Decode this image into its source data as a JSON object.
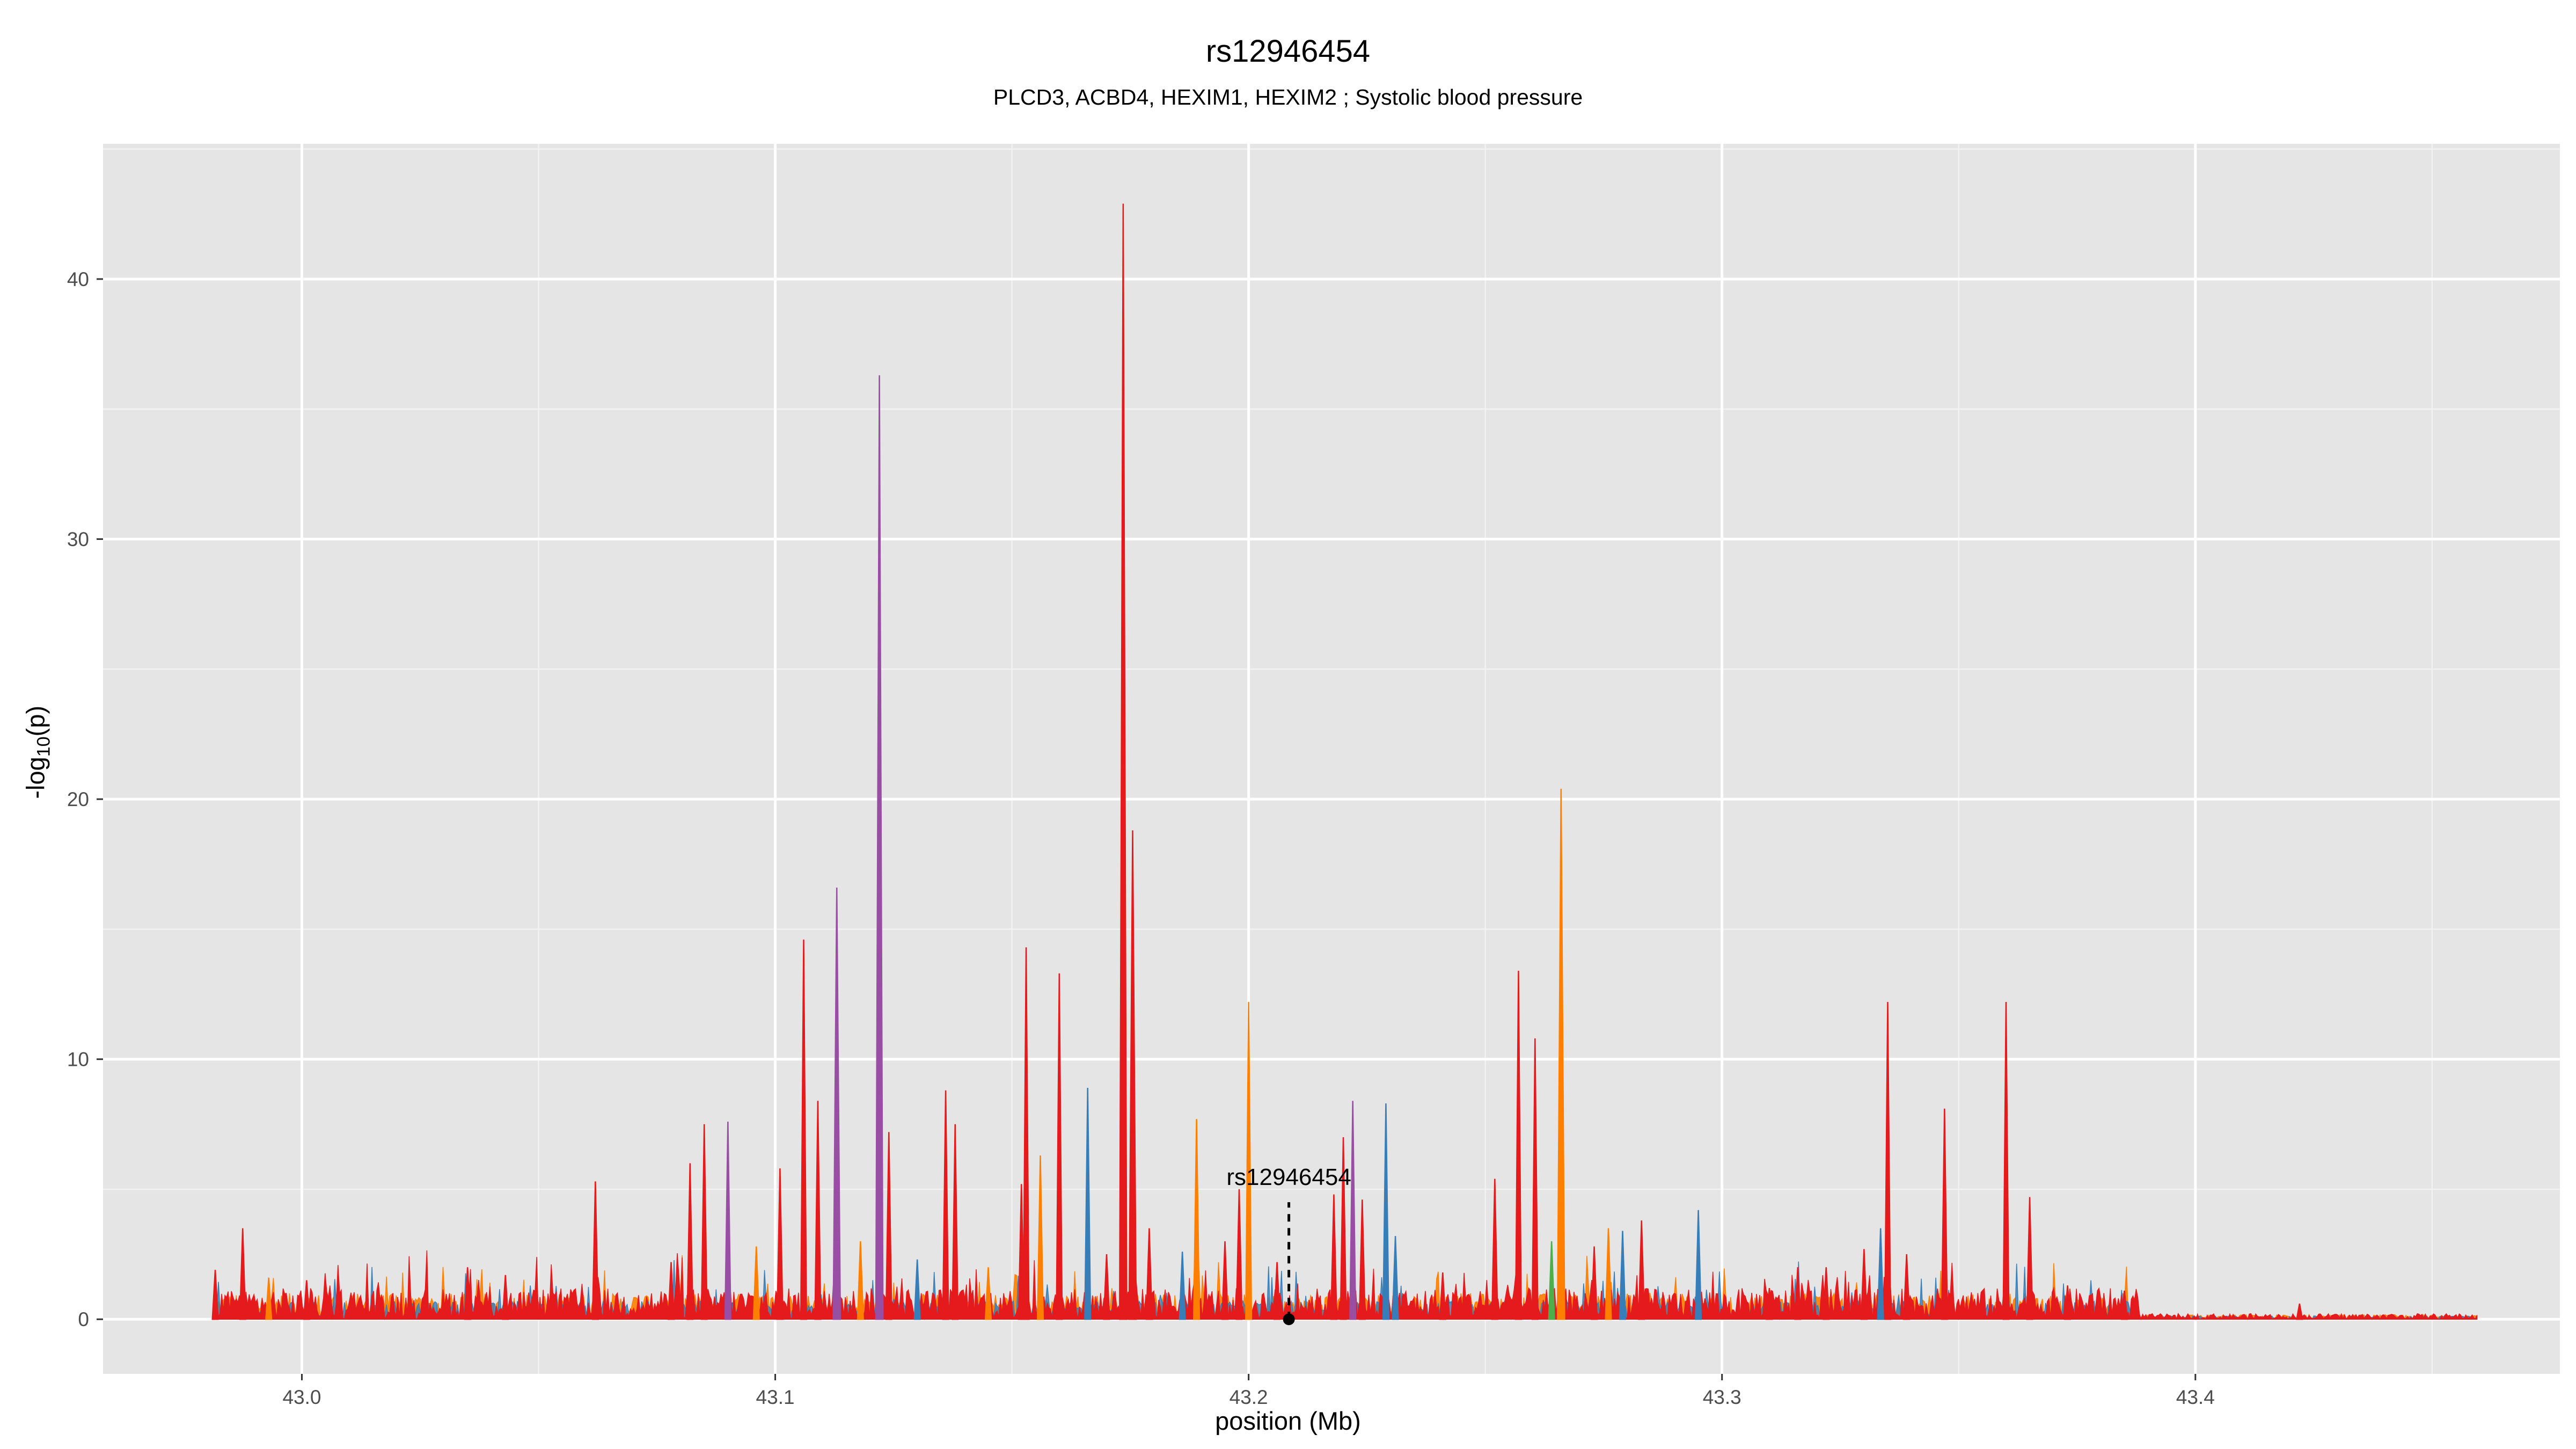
{
  "chart_data": {
    "type": "area",
    "title": "rs12946454",
    "subtitle": "PLCD3, ACBD4, HEXIM1, HEXIM2 ; Systolic blood pressure",
    "xlabel": "position (Mb)",
    "ylabel_main": "-log",
    "ylabel_sub": "10",
    "ylabel_tail": "(p)",
    "xlim": [
      42.958,
      43.477
    ],
    "ylim": [
      -2.1,
      45.2
    ],
    "x_ticks": [
      43.0,
      43.1,
      43.2,
      43.3,
      43.4
    ],
    "x_tick_labels": [
      "43.0",
      "43.1",
      "43.2",
      "43.3",
      "43.4"
    ],
    "y_ticks": [
      0,
      10,
      20,
      30,
      40
    ],
    "y_tick_labels": [
      "0",
      "10",
      "20",
      "30",
      "40"
    ],
    "grid": true,
    "background": "#e5e5e5",
    "series_colors": [
      "#e41a1c",
      "#ff7f00",
      "#377eb8",
      "#984ea3",
      "#4daf4a"
    ],
    "data_range": [
      42.9817,
      43.4595
    ],
    "peaks": [
      {
        "x": 42.9817,
        "y": 1.9,
        "color": "#e41a1c"
      },
      {
        "x": 42.9875,
        "y": 3.5,
        "color": "#e41a1c"
      },
      {
        "x": 42.993,
        "y": 1.6,
        "color": "#ff7f00"
      },
      {
        "x": 43.001,
        "y": 1.5,
        "color": "#e41a1c"
      },
      {
        "x": 43.035,
        "y": 2.0,
        "color": "#e41a1c"
      },
      {
        "x": 43.043,
        "y": 1.7,
        "color": "#e41a1c"
      },
      {
        "x": 43.062,
        "y": 5.3,
        "color": "#e41a1c"
      },
      {
        "x": 43.078,
        "y": 2.2,
        "color": "#e41a1c"
      },
      {
        "x": 43.082,
        "y": 6.0,
        "color": "#e41a1c"
      },
      {
        "x": 43.085,
        "y": 7.5,
        "color": "#e41a1c"
      },
      {
        "x": 43.09,
        "y": 7.6,
        "color": "#984ea3"
      },
      {
        "x": 43.096,
        "y": 2.8,
        "color": "#ff7f00"
      },
      {
        "x": 43.101,
        "y": 5.8,
        "color": "#e41a1c"
      },
      {
        "x": 43.106,
        "y": 14.6,
        "color": "#e41a1c"
      },
      {
        "x": 43.109,
        "y": 8.4,
        "color": "#e41a1c"
      },
      {
        "x": 43.113,
        "y": 16.6,
        "color": "#984ea3"
      },
      {
        "x": 43.118,
        "y": 3.0,
        "color": "#ff7f00"
      },
      {
        "x": 43.122,
        "y": 36.3,
        "color": "#984ea3"
      },
      {
        "x": 43.124,
        "y": 7.2,
        "color": "#e41a1c"
      },
      {
        "x": 43.13,
        "y": 2.3,
        "color": "#377eb8"
      },
      {
        "x": 43.136,
        "y": 8.8,
        "color": "#e41a1c"
      },
      {
        "x": 43.138,
        "y": 7.5,
        "color": "#e41a1c"
      },
      {
        "x": 43.145,
        "y": 2.0,
        "color": "#ff7f00"
      },
      {
        "x": 43.152,
        "y": 5.2,
        "color": "#e41a1c"
      },
      {
        "x": 43.153,
        "y": 14.3,
        "color": "#e41a1c"
      },
      {
        "x": 43.156,
        "y": 6.3,
        "color": "#ff7f00"
      },
      {
        "x": 43.16,
        "y": 13.3,
        "color": "#e41a1c"
      },
      {
        "x": 43.166,
        "y": 8.9,
        "color": "#377eb8"
      },
      {
        "x": 43.17,
        "y": 2.5,
        "color": "#e41a1c"
      },
      {
        "x": 43.1735,
        "y": 42.9,
        "color": "#e41a1c"
      },
      {
        "x": 43.1755,
        "y": 18.8,
        "color": "#e41a1c"
      },
      {
        "x": 43.179,
        "y": 3.5,
        "color": "#e41a1c"
      },
      {
        "x": 43.186,
        "y": 2.6,
        "color": "#377eb8"
      },
      {
        "x": 43.189,
        "y": 7.7,
        "color": "#ff7f00"
      },
      {
        "x": 43.195,
        "y": 3.0,
        "color": "#e41a1c"
      },
      {
        "x": 43.198,
        "y": 5.0,
        "color": "#e41a1c"
      },
      {
        "x": 43.2,
        "y": 12.2,
        "color": "#ff7f00"
      },
      {
        "x": 43.206,
        "y": 2.2,
        "color": "#e41a1c"
      },
      {
        "x": 43.218,
        "y": 4.8,
        "color": "#e41a1c"
      },
      {
        "x": 43.22,
        "y": 7.0,
        "color": "#e41a1c"
      },
      {
        "x": 43.222,
        "y": 8.4,
        "color": "#984ea3"
      },
      {
        "x": 43.224,
        "y": 4.6,
        "color": "#e41a1c"
      },
      {
        "x": 43.229,
        "y": 8.3,
        "color": "#377eb8"
      },
      {
        "x": 43.231,
        "y": 3.2,
        "color": "#377eb8"
      },
      {
        "x": 43.241,
        "y": 1.8,
        "color": "#e41a1c"
      },
      {
        "x": 43.252,
        "y": 5.4,
        "color": "#e41a1c"
      },
      {
        "x": 43.257,
        "y": 13.4,
        "color": "#e41a1c"
      },
      {
        "x": 43.2605,
        "y": 10.8,
        "color": "#e41a1c"
      },
      {
        "x": 43.264,
        "y": 3.0,
        "color": "#4daf4a"
      },
      {
        "x": 43.266,
        "y": 20.4,
        "color": "#ff7f00"
      },
      {
        "x": 43.273,
        "y": 2.8,
        "color": "#e41a1c"
      },
      {
        "x": 43.276,
        "y": 3.5,
        "color": "#ff7f00"
      },
      {
        "x": 43.279,
        "y": 3.4,
        "color": "#377eb8"
      },
      {
        "x": 43.283,
        "y": 3.8,
        "color": "#e41a1c"
      },
      {
        "x": 43.295,
        "y": 4.2,
        "color": "#377eb8"
      },
      {
        "x": 43.31,
        "y": 1.2,
        "color": "#e41a1c"
      },
      {
        "x": 43.316,
        "y": 2.0,
        "color": "#e41a1c"
      },
      {
        "x": 43.322,
        "y": 2.0,
        "color": "#e41a1c"
      },
      {
        "x": 43.33,
        "y": 2.7,
        "color": "#e41a1c"
      },
      {
        "x": 43.3335,
        "y": 3.5,
        "color": "#377eb8"
      },
      {
        "x": 43.335,
        "y": 12.2,
        "color": "#e41a1c"
      },
      {
        "x": 43.339,
        "y": 2.5,
        "color": "#e41a1c"
      },
      {
        "x": 43.347,
        "y": 8.1,
        "color": "#e41a1c"
      },
      {
        "x": 43.36,
        "y": 12.2,
        "color": "#e41a1c"
      },
      {
        "x": 43.365,
        "y": 4.7,
        "color": "#e41a1c"
      },
      {
        "x": 43.373,
        "y": 1.3,
        "color": "#e41a1c"
      },
      {
        "x": 43.385,
        "y": 1.1,
        "color": "#e41a1c"
      },
      {
        "x": 43.422,
        "y": 0.6,
        "color": "#e41a1c"
      }
    ],
    "annotation": {
      "label": "rs12946454",
      "x": 43.2085,
      "y": 0
    }
  }
}
